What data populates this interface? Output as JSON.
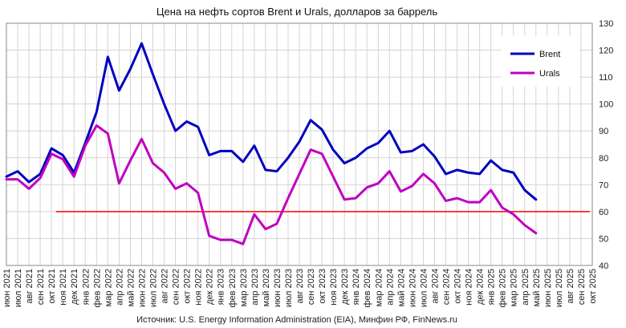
{
  "chart_data": {
    "type": "line",
    "title": "Цена на нефть сортов Brent и Urals, долларов за баррель",
    "source": "Источник: U.S. Energy Information Administration (EIA), Минфин РФ, FinNews.ru",
    "categories": [
      "июн 2021",
      "июл 2021",
      "авг 2021",
      "сен 2021",
      "окт 2021",
      "ноя 2021",
      "дек 2021",
      "янв 2022",
      "фев 2022",
      "мар 2022",
      "апр 2022",
      "май 2022",
      "июн 2022",
      "июл 2022",
      "авг 2022",
      "сен 2022",
      "окт 2022",
      "ноя 2022",
      "дек 2022",
      "янв 2023",
      "фев 2023",
      "мар 2023",
      "апр 2023",
      "май 2023",
      "июн 2023",
      "июл 2023",
      "авг 2023",
      "сен 2023",
      "окт 2023",
      "ноя 2023",
      "дек 2023",
      "янв 2024",
      "фев 2024",
      "мар 2024",
      "апр 2024",
      "май 2024",
      "июн 2024",
      "июл 2024",
      "авг 2024",
      "сен 2024",
      "окт 2024",
      "ноя 2024",
      "дек 2024",
      "янв 2025",
      "фев 2025",
      "мар 2025",
      "апр 2025",
      "май 2025",
      "июн 2025",
      "июл 2025",
      "авг 2025",
      "сен 2025",
      "окт 2025"
    ],
    "series": [
      {
        "name": "Brent",
        "color": "#0000c0",
        "values": [
          73,
          75,
          71,
          74,
          83.5,
          81,
          74.5,
          85.5,
          97,
          117.5,
          105,
          113,
          122.5,
          111,
          100,
          90,
          93.5,
          91.5,
          81,
          82.5,
          82.5,
          78.5,
          84.5,
          75.5,
          75,
          80,
          86,
          94,
          90.5,
          83,
          78,
          80,
          83.5,
          85.5,
          90,
          82,
          82.5,
          85,
          80.5,
          74,
          75.5,
          74.5,
          74,
          79,
          75.5,
          74.5,
          68,
          64.5,
          null,
          null,
          null,
          null,
          null
        ]
      },
      {
        "name": "Urals",
        "color": "#c000c0",
        "values": [
          72,
          72,
          68.5,
          72.5,
          81.5,
          79.5,
          73,
          84.5,
          92,
          89,
          70.5,
          79,
          87,
          78,
          74.5,
          68.5,
          70.5,
          67,
          51,
          49.5,
          49.5,
          48,
          59,
          53.5,
          55.5,
          65,
          74,
          83,
          81.5,
          73,
          64.5,
          65,
          69,
          70.5,
          75,
          67.5,
          69.5,
          74,
          70.5,
          64,
          65,
          63.5,
          63.5,
          68,
          61.5,
          59,
          55,
          52,
          null,
          null,
          null,
          null,
          null
        ]
      }
    ],
    "reference_line": {
      "value": 60,
      "color": "#ff0000"
    },
    "yaxis": {
      "position": "right",
      "ylim": [
        40,
        130
      ],
      "ticks": [
        40,
        50,
        60,
        70,
        80,
        90,
        100,
        110,
        120,
        130
      ]
    },
    "grid": true,
    "legend": "top-right"
  }
}
